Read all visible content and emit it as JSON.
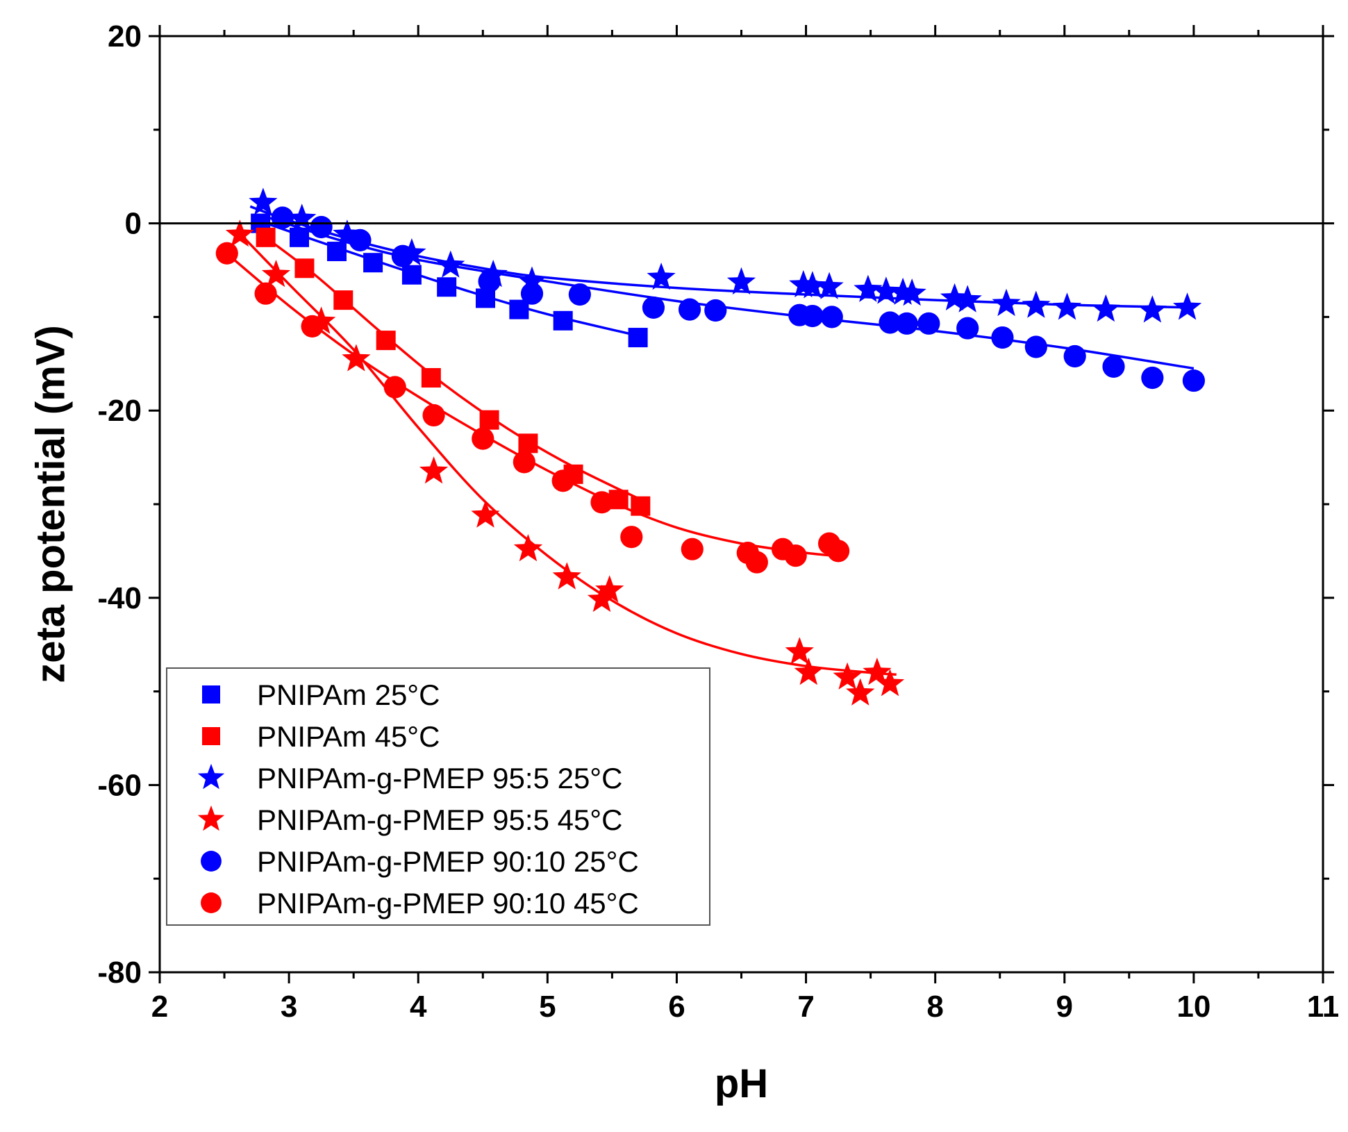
{
  "chart_data": {
    "type": "scatter",
    "xlabel": "pH",
    "ylabel": "zeta potential (mV)",
    "xlim": [
      2,
      11
    ],
    "ylim": [
      -80,
      20
    ],
    "xticks": [
      2,
      3,
      4,
      5,
      6,
      7,
      8,
      9,
      10,
      11
    ],
    "yticks": [
      20,
      0,
      -20,
      -40,
      -60,
      -80
    ],
    "xtick_labels": [
      "2",
      "3",
      "4",
      "5",
      "6",
      "7",
      "8",
      "9",
      "10",
      "11"
    ],
    "ytick_labels": [
      "20",
      "0",
      "-20",
      "-40",
      "-60",
      "-80"
    ],
    "zero_line": 0,
    "legend_position": "bottom-left",
    "series": [
      {
        "name": "PNIPAm 25°C",
        "marker": "square",
        "color": "#0000ff",
        "points": [
          [
            2.78,
            0.0
          ],
          [
            3.08,
            -1.5
          ],
          [
            3.37,
            -3.0
          ],
          [
            3.65,
            -4.2
          ],
          [
            3.95,
            -5.5
          ],
          [
            4.22,
            -6.8
          ],
          [
            4.52,
            -8.0
          ],
          [
            4.78,
            -9.2
          ],
          [
            5.12,
            -10.4
          ],
          [
            5.7,
            -12.2
          ]
        ],
        "fit": [
          [
            2.72,
            0.5
          ],
          [
            3.2,
            -1.8
          ],
          [
            3.8,
            -4.6
          ],
          [
            4.4,
            -7.3
          ],
          [
            5.0,
            -9.7
          ],
          [
            5.7,
            -12.0
          ]
        ]
      },
      {
        "name": "PNIPAm 45°C",
        "marker": "square",
        "color": "#ff0000",
        "points": [
          [
            2.82,
            -1.5
          ],
          [
            3.12,
            -4.8
          ],
          [
            3.42,
            -8.2
          ],
          [
            3.75,
            -12.5
          ],
          [
            4.1,
            -16.5
          ],
          [
            4.55,
            -21.0
          ],
          [
            4.85,
            -23.5
          ],
          [
            5.2,
            -26.8
          ],
          [
            5.55,
            -29.5
          ],
          [
            5.72,
            -30.2
          ]
        ],
        "fit": [
          [
            2.75,
            -0.8
          ],
          [
            3.2,
            -5.5
          ],
          [
            3.7,
            -11.5
          ],
          [
            4.2,
            -17.2
          ],
          [
            4.7,
            -22.0
          ],
          [
            5.2,
            -26.0
          ],
          [
            5.72,
            -29.5
          ]
        ]
      },
      {
        "name": "PNIPAm-g-PMEP 95:5 25°C",
        "marker": "star",
        "color": "#0000ff",
        "points": [
          [
            2.8,
            2.2
          ],
          [
            3.1,
            0.5
          ],
          [
            3.45,
            -1.2
          ],
          [
            3.95,
            -3.2
          ],
          [
            4.25,
            -4.5
          ],
          [
            4.58,
            -5.5
          ],
          [
            4.88,
            -6.2
          ],
          [
            5.88,
            -5.8
          ],
          [
            6.5,
            -6.3
          ],
          [
            6.98,
            -6.6
          ],
          [
            7.05,
            -6.7
          ],
          [
            7.18,
            -6.8
          ],
          [
            7.48,
            -7.1
          ],
          [
            7.62,
            -7.3
          ],
          [
            7.75,
            -7.4
          ],
          [
            7.82,
            -7.5
          ],
          [
            8.15,
            -8.0
          ],
          [
            8.25,
            -8.2
          ],
          [
            8.55,
            -8.6
          ],
          [
            8.78,
            -8.8
          ],
          [
            9.02,
            -9.0
          ],
          [
            9.32,
            -9.2
          ],
          [
            9.68,
            -9.3
          ],
          [
            9.95,
            -9.0
          ]
        ],
        "fit": [
          [
            2.7,
            1.8
          ],
          [
            3.0,
            0.3
          ],
          [
            3.5,
            -1.8
          ],
          [
            4.0,
            -3.5
          ],
          [
            4.5,
            -4.8
          ],
          [
            5.0,
            -5.8
          ],
          [
            6.0,
            -6.9
          ],
          [
            7.0,
            -7.6
          ],
          [
            8.0,
            -8.2
          ],
          [
            9.0,
            -8.7
          ],
          [
            10.0,
            -9.0
          ]
        ]
      },
      {
        "name": "PNIPAm-g-PMEP 95:5 45°C",
        "marker": "star",
        "color": "#ff0000",
        "points": [
          [
            2.62,
            -1.2
          ],
          [
            2.9,
            -5.5
          ],
          [
            3.25,
            -10.5
          ],
          [
            3.52,
            -14.5
          ],
          [
            4.12,
            -26.5
          ],
          [
            4.52,
            -31.2
          ],
          [
            4.85,
            -34.8
          ],
          [
            5.15,
            -37.8
          ],
          [
            5.42,
            -40.2
          ],
          [
            5.48,
            -39.2
          ],
          [
            6.95,
            -45.8
          ],
          [
            7.02,
            -48.0
          ],
          [
            7.32,
            -48.5
          ],
          [
            7.42,
            -50.2
          ],
          [
            7.55,
            -48.0
          ],
          [
            7.65,
            -49.2
          ]
        ],
        "fit": [
          [
            2.6,
            -0.8
          ],
          [
            3.0,
            -6.5
          ],
          [
            3.5,
            -13.5
          ],
          [
            4.0,
            -21.8
          ],
          [
            4.5,
            -29.5
          ],
          [
            5.0,
            -35.5
          ],
          [
            5.5,
            -40.3
          ],
          [
            6.0,
            -43.8
          ],
          [
            6.5,
            -46.0
          ],
          [
            7.0,
            -47.3
          ],
          [
            7.5,
            -48.0
          ],
          [
            7.7,
            -48.2
          ]
        ]
      },
      {
        "name": "PNIPAm-g-PMEP 90:10 25°C",
        "marker": "circle",
        "color": "#0000ff",
        "points": [
          [
            2.95,
            0.6
          ],
          [
            3.25,
            -0.4
          ],
          [
            3.55,
            -1.8
          ],
          [
            3.88,
            -3.5
          ],
          [
            4.55,
            -6.2
          ],
          [
            4.88,
            -7.5
          ],
          [
            5.25,
            -7.6
          ],
          [
            5.82,
            -9.0
          ],
          [
            6.1,
            -9.2
          ],
          [
            6.3,
            -9.3
          ],
          [
            6.95,
            -9.8
          ],
          [
            7.05,
            -9.9
          ],
          [
            7.2,
            -10.0
          ],
          [
            7.65,
            -10.6
          ],
          [
            7.78,
            -10.7
          ],
          [
            7.95,
            -10.7
          ],
          [
            8.25,
            -11.2
          ],
          [
            8.52,
            -12.2
          ],
          [
            8.78,
            -13.2
          ],
          [
            9.08,
            -14.2
          ],
          [
            9.38,
            -15.3
          ],
          [
            9.68,
            -16.5
          ],
          [
            10.0,
            -16.8
          ]
        ],
        "fit": [
          [
            2.8,
            0.8
          ],
          [
            3.2,
            -1.0
          ],
          [
            3.6,
            -2.6
          ],
          [
            4.0,
            -3.9
          ],
          [
            4.5,
            -5.1
          ],
          [
            5.0,
            -6.2
          ],
          [
            6.0,
            -8.3
          ],
          [
            7.0,
            -10.0
          ],
          [
            8.0,
            -11.5
          ],
          [
            9.0,
            -13.3
          ],
          [
            10.0,
            -15.5
          ]
        ]
      },
      {
        "name": "PNIPAm-g-PMEP 90:10 45°C",
        "marker": "circle",
        "color": "#ff0000",
        "points": [
          [
            2.52,
            -3.2
          ],
          [
            2.82,
            -7.5
          ],
          [
            3.18,
            -11.0
          ],
          [
            3.82,
            -17.5
          ],
          [
            4.12,
            -20.5
          ],
          [
            4.5,
            -23.0
          ],
          [
            4.82,
            -25.5
          ],
          [
            5.12,
            -27.5
          ],
          [
            5.42,
            -29.8
          ],
          [
            5.65,
            -33.5
          ],
          [
            6.12,
            -34.8
          ],
          [
            6.55,
            -35.2
          ],
          [
            6.62,
            -36.2
          ],
          [
            6.82,
            -34.8
          ],
          [
            6.92,
            -35.5
          ],
          [
            7.18,
            -34.2
          ],
          [
            7.25,
            -35.0
          ]
        ],
        "fit": [
          [
            2.5,
            -3.0
          ],
          [
            3.0,
            -8.8
          ],
          [
            3.5,
            -14.0
          ],
          [
            4.0,
            -18.5
          ],
          [
            4.5,
            -22.6
          ],
          [
            5.0,
            -26.4
          ],
          [
            5.5,
            -29.8
          ],
          [
            6.0,
            -32.5
          ],
          [
            6.5,
            -34.2
          ],
          [
            7.0,
            -35.2
          ],
          [
            7.3,
            -35.6
          ]
        ]
      }
    ]
  }
}
